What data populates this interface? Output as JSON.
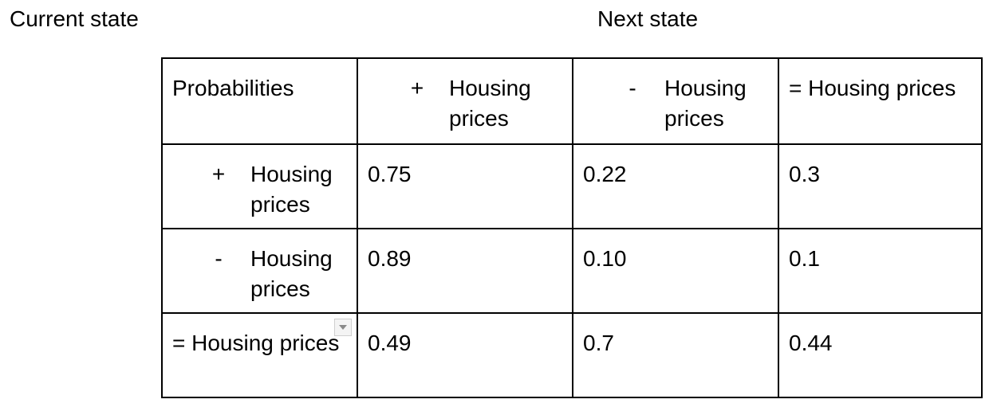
{
  "labels": {
    "current_state": "Current state",
    "next_state": "Next state"
  },
  "table": {
    "corner": "Probabilities",
    "columns": [
      {
        "mark": "+",
        "text": "Housing prices"
      },
      {
        "mark": "-",
        "text": "Housing prices"
      },
      {
        "mark": "",
        "text": "= Housing prices"
      }
    ],
    "rows": [
      {
        "mark": "+",
        "text": "Housing prices",
        "values": [
          "0.75",
          "0.22",
          "0.3"
        ]
      },
      {
        "mark": "-",
        "text": "Housing prices",
        "values": [
          "0.89",
          "0.10",
          "0.1"
        ]
      },
      {
        "mark": "",
        "text": "= Housing prices",
        "values": [
          "0.49",
          "0.7",
          "0.44"
        ]
      }
    ]
  },
  "icons": {
    "cell_dropdown": "chevron-down-icon"
  }
}
